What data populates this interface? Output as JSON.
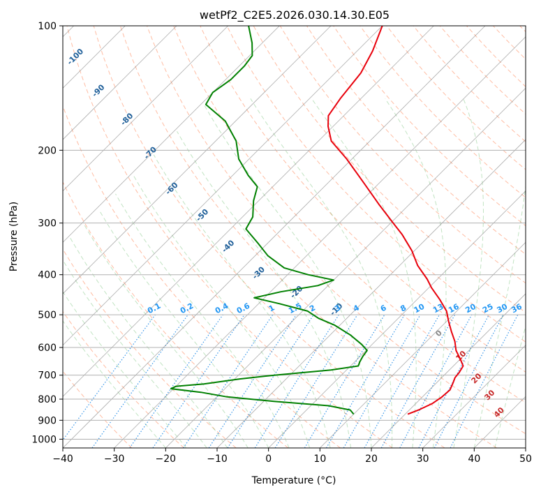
{
  "chart_data": {
    "type": "line",
    "subtype": "skew-t log-p",
    "title": "wetPf2_C2E5.2026.030.14.30.E05",
    "xlabel": "Temperature (°C)",
    "ylabel": "Pressure (hPa)",
    "xlim": [
      -40,
      50
    ],
    "ylim": [
      1050,
      100
    ],
    "x_ticks": [
      -40,
      -30,
      -20,
      -10,
      0,
      10,
      20,
      30,
      40,
      50
    ],
    "y_ticks": [
      100,
      200,
      300,
      400,
      500,
      600,
      700,
      800,
      900,
      1000
    ],
    "series": [
      {
        "name": "temperature",
        "color": "#e8000b",
        "points": [
          [
            870,
            20.5
          ],
          [
            850,
            21.8
          ],
          [
            820,
            23.2
          ],
          [
            790,
            23.8
          ],
          [
            760,
            24.0
          ],
          [
            730,
            23.2
          ],
          [
            710,
            22.6
          ],
          [
            690,
            22.4
          ],
          [
            665,
            21.9
          ],
          [
            640,
            20.0
          ],
          [
            610,
            17.5
          ],
          [
            580,
            15.5
          ],
          [
            550,
            13.0
          ],
          [
            520,
            10.5
          ],
          [
            490,
            8.0
          ],
          [
            460,
            4.5
          ],
          [
            430,
            0.5
          ],
          [
            410,
            -2.0
          ],
          [
            380,
            -6.5
          ],
          [
            350,
            -10.5
          ],
          [
            320,
            -15.5
          ],
          [
            300,
            -19.5
          ],
          [
            270,
            -26.0
          ],
          [
            240,
            -33.0
          ],
          [
            210,
            -41.0
          ],
          [
            190,
            -47.5
          ],
          [
            175,
            -51.0
          ],
          [
            165,
            -53.0
          ],
          [
            150,
            -54.0
          ],
          [
            130,
            -55.0
          ],
          [
            115,
            -57.0
          ],
          [
            100,
            -60.0
          ]
        ]
      },
      {
        "name": "dewpoint",
        "color": "#008000",
        "points": [
          [
            870,
            10.0
          ],
          [
            850,
            8.5
          ],
          [
            830,
            3.5
          ],
          [
            810,
            -8.0
          ],
          [
            790,
            -18.0
          ],
          [
            770,
            -24.0
          ],
          [
            755,
            -30.5
          ],
          [
            745,
            -30.0
          ],
          [
            735,
            -25.0
          ],
          [
            715,
            -19.0
          ],
          [
            700,
            -13.0
          ],
          [
            680,
            -3.0
          ],
          [
            665,
            1.5
          ],
          [
            650,
            1.0
          ],
          [
            630,
            0.5
          ],
          [
            610,
            0.2
          ],
          [
            590,
            -2.0
          ],
          [
            560,
            -6.0
          ],
          [
            530,
            -11.0
          ],
          [
            510,
            -15.5
          ],
          [
            490,
            -19.0
          ],
          [
            470,
            -26.0
          ],
          [
            455,
            -32.0
          ],
          [
            440,
            -28.0
          ],
          [
            425,
            -22.0
          ],
          [
            412,
            -20.0
          ],
          [
            400,
            -26.0
          ],
          [
            385,
            -32.0
          ],
          [
            360,
            -37.5
          ],
          [
            335,
            -42.0
          ],
          [
            310,
            -47.0
          ],
          [
            290,
            -48.0
          ],
          [
            265,
            -51.0
          ],
          [
            245,
            -53.0
          ],
          [
            230,
            -57.0
          ],
          [
            210,
            -62.0
          ],
          [
            190,
            -66.0
          ],
          [
            170,
            -72.0
          ],
          [
            155,
            -79.0
          ],
          [
            145,
            -80.0
          ],
          [
            135,
            -79.0
          ],
          [
            125,
            -79.0
          ],
          [
            118,
            -79.5
          ],
          [
            110,
            -82.0
          ],
          [
            100,
            -86.0
          ]
        ]
      }
    ],
    "dry_adiabat_labels": [
      "-100",
      "-90",
      "-80",
      "-70",
      "-60",
      "-50",
      "-40",
      "-30",
      "-20",
      "-10"
    ],
    "moist_adiabat_labels": [
      "0",
      "10",
      "20",
      "30",
      "40"
    ],
    "mixing_ratio_labels": [
      "0.1",
      "0.2",
      "0.4",
      "0.6",
      "1",
      "1.5",
      "2",
      "3",
      "4",
      "6",
      "8",
      "10",
      "13",
      "16",
      "20",
      "25",
      "30",
      "36"
    ],
    "mixing_ratio_values": [
      0.1,
      0.2,
      0.4,
      0.6,
      1,
      1.5,
      2,
      3,
      4,
      6,
      8,
      10,
      13,
      16,
      20,
      25,
      30,
      36
    ],
    "moist_adiabat_values": [
      0,
      10,
      20,
      30,
      40
    ],
    "colors": {
      "dry_adiabat": "#ff9f7a",
      "moist_adiabat": "#4caf50",
      "mixing_ratio": "#1e88e5",
      "dry_label": "#1f5f99",
      "moist_label": "#c62828",
      "mixing_label": "#2196f3",
      "isotherm": "#777777",
      "isobar": "#b0b0b0"
    },
    "grid": true
  }
}
